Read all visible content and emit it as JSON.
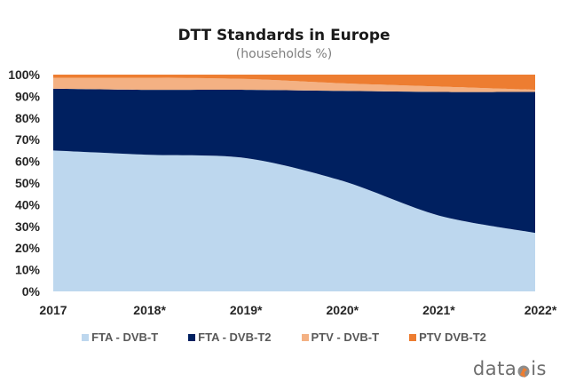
{
  "chart_data": {
    "type": "area",
    "stacked": true,
    "title": "DTT Standards in Europe",
    "subtitle": "(households %)",
    "xlabel": "",
    "ylabel": "",
    "categories": [
      "2017",
      "2018*",
      "2019*",
      "2020*",
      "2021*",
      "2022*"
    ],
    "ylim": [
      0,
      100
    ],
    "yticks": [
      "0%",
      "10%",
      "20%",
      "30%",
      "40%",
      "50%",
      "60%",
      "70%",
      "80%",
      "90%",
      "100%"
    ],
    "grid": false,
    "legend_position": "bottom",
    "series": [
      {
        "name": "FTA - DVB-T",
        "color": "#BDD7EE",
        "values": [
          65,
          63,
          61.5,
          51,
          35,
          27
        ]
      },
      {
        "name": "FTA - DVB-T2",
        "color": "#002060",
        "values": [
          28.5,
          30,
          31.5,
          41.5,
          57,
          65
        ]
      },
      {
        "name": "PTV - DVB-T",
        "color": "#F4B183",
        "values": [
          5,
          5.5,
          5,
          3.5,
          2.5,
          1
        ]
      },
      {
        "name": "PTV DVB-T2",
        "color": "#ED7D31",
        "values": [
          1.5,
          1.5,
          2,
          4,
          5.5,
          7
        ]
      }
    ]
  },
  "logo": {
    "text_before": "data",
    "text_after": "is",
    "accent_color": "#ED7D31"
  }
}
